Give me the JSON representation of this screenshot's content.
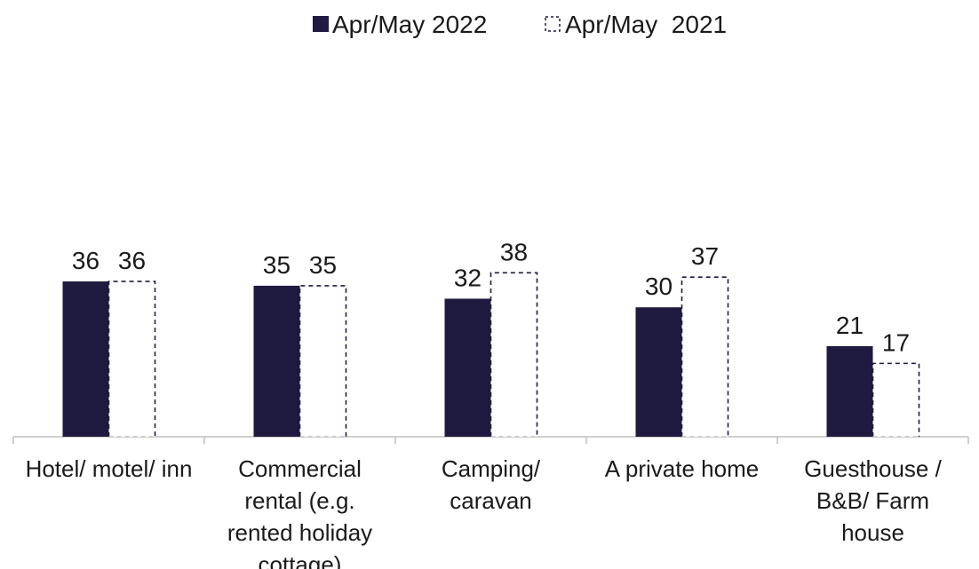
{
  "chart_data": {
    "type": "bar",
    "title": "",
    "xlabel": "",
    "ylabel": "",
    "ylim": [
      0,
      45
    ],
    "grid": false,
    "legend_position": "top-center",
    "categories": [
      [
        "Hotel/ motel/ inn"
      ],
      [
        "Commercial",
        "rental (e.g.",
        "rented holiday",
        "cottage)"
      ],
      [
        "Camping/",
        "caravan"
      ],
      [
        "A private home"
      ],
      [
        "Guesthouse /",
        "B&B/ Farm",
        "house"
      ]
    ],
    "series": [
      {
        "name": "Apr/May 2022",
        "style": "solid",
        "color": "#1f1a3f",
        "values": [
          36,
          35,
          32,
          30,
          21
        ]
      },
      {
        "name": "Apr/May  2021",
        "style": "dashed-outline",
        "color": "#1f1a3f",
        "values": [
          36,
          35,
          38,
          37,
          17
        ]
      }
    ]
  }
}
